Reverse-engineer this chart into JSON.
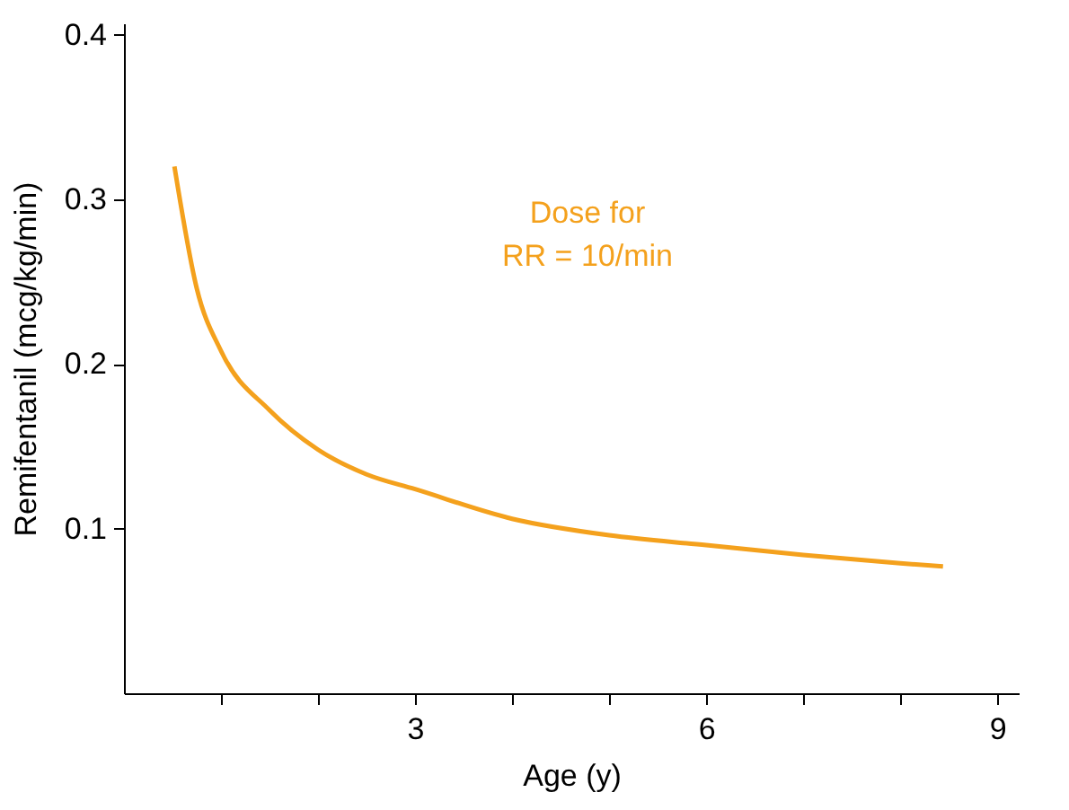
{
  "chart_data": {
    "type": "line",
    "xlabel": "Age (y)",
    "ylabel": "Remifentanil (mcg/kg/min)",
    "series": [
      {
        "color": "#f4a11d",
        "x": [
          0.52,
          0.75,
          1,
          1.5,
          2,
          2.5,
          3,
          4,
          5,
          6,
          7,
          8,
          8.44
        ],
        "values": [
          0.32,
          0.246,
          0.208,
          0.172,
          0.148,
          0.133,
          0.124,
          0.106,
          0.096,
          0.09,
          0.084,
          0.079,
          0.077
        ]
      }
    ],
    "annotations": [
      "Dose for\nRR = 10/min"
    ],
    "xlim": [
      0,
      9.22
    ],
    "ylim": [
      0,
      0.407
    ],
    "xticks": [
      {
        "value": 1,
        "label": null
      },
      {
        "value": 2,
        "label": null
      },
      3,
      {
        "value": 4,
        "label": null
      },
      {
        "value": 5,
        "label": null
      },
      6,
      {
        "value": 7,
        "label": null
      },
      {
        "value": 8,
        "label": null
      },
      9
    ],
    "yticks": [
      0.1,
      0.2,
      0.3,
      0.4
    ],
    "grid": false,
    "marker": "none",
    "line_style": "solid"
  }
}
